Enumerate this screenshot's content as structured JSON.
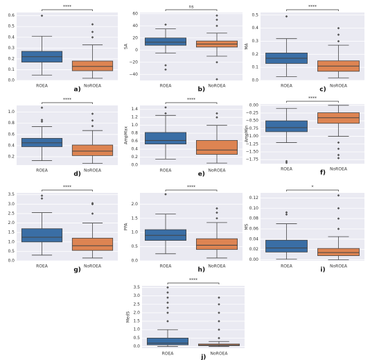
{
  "chart_data": [
    {
      "type": "box",
      "label": "a)",
      "categories": [
        "ROEA",
        "NoROEA"
      ],
      "significance": "****",
      "ylim": [
        0,
        0.63
      ],
      "yticks": [
        {
          "value": 0,
          "label": "0.0"
        },
        0.1,
        0.2,
        0.3,
        0.4,
        0.5,
        0.6
      ],
      "boxes": [
        {
          "color": "#3a6ea5",
          "whislo": 0.05,
          "q1": 0.17,
          "med": 0.22,
          "q3": 0.27,
          "whishi": 0.41,
          "outliers": [
            0.6
          ]
        },
        {
          "color": "#dd8452",
          "whislo": 0.02,
          "q1": 0.09,
          "med": 0.13,
          "q3": 0.18,
          "whishi": 0.33,
          "outliers": [
            0.4,
            0.45,
            0.52
          ]
        }
      ]
    },
    {
      "type": "box",
      "label": "b)",
      "ylabel": "SA",
      "categories": [
        "ROEA",
        "NoROEA"
      ],
      "significance": "ns",
      "ylim": [
        -50,
        62
      ],
      "yticks": [
        {
          "value": -40,
          "label": "−40"
        },
        {
          "value": -20,
          "label": "−20"
        },
        0,
        20,
        40,
        60
      ],
      "boxes": [
        {
          "color": "#3a6ea5",
          "whislo": -5,
          "q1": 8,
          "med": 13,
          "q3": 20,
          "whishi": 35,
          "outliers": [
            42,
            -25,
            -32
          ]
        },
        {
          "color": "#dd8452",
          "whislo": -10,
          "q1": 5,
          "med": 10,
          "q3": 15,
          "whishi": 28,
          "outliers": [
            40,
            50,
            57,
            -20,
            -48
          ]
        }
      ]
    },
    {
      "type": "box",
      "label": "c)",
      "ylabel": "MA",
      "categories": [
        "ROEA",
        "NoROEA"
      ],
      "significance": "****",
      "ylim": [
        0,
        0.52
      ],
      "yticks": [
        {
          "value": 0,
          "label": "0.0"
        },
        0.1,
        0.2,
        0.3,
        0.4,
        0.5
      ],
      "boxes": [
        {
          "color": "#3a6ea5",
          "whislo": 0.03,
          "q1": 0.13,
          "med": 0.17,
          "q3": 0.21,
          "whishi": 0.32,
          "outliers": [
            0.49
          ]
        },
        {
          "color": "#dd8452",
          "whislo": 0.02,
          "q1": 0.07,
          "med": 0.11,
          "q3": 0.15,
          "whishi": 0.27,
          "outliers": [
            0.3,
            0.35,
            0.4
          ]
        }
      ]
    },
    {
      "type": "box",
      "label": "d)",
      "categories": [
        "ROEA",
        "NoROEA"
      ],
      "significance": "****",
      "ylim": [
        0.05,
        1.12
      ],
      "yticks": [
        0.2,
        0.4,
        0.6,
        0.8,
        {
          "value": 1,
          "label": "1.0"
        }
      ],
      "boxes": [
        {
          "color": "#3a6ea5",
          "whislo": 0.13,
          "q1": 0.38,
          "med": 0.45,
          "q3": 0.53,
          "whishi": 0.74,
          "outliers": [
            0.83,
            0.86,
            1.08
          ]
        },
        {
          "color": "#dd8452",
          "whislo": 0.08,
          "q1": 0.22,
          "med": 0.3,
          "q3": 0.41,
          "whishi": 0.67,
          "outliers": [
            0.75,
            0.85,
            0.97
          ]
        }
      ]
    },
    {
      "type": "box",
      "label": "e)",
      "ylabel": "AmpMax",
      "categories": [
        "ROEA",
        "NoROEA"
      ],
      "significance": "****",
      "ylim": [
        0,
        1.5
      ],
      "yticks": [
        {
          "value": 0,
          "label": "0.0"
        },
        0.2,
        0.4,
        0.6,
        0.8,
        {
          "value": 1,
          "label": "1.0"
        },
        1.2,
        1.4
      ],
      "boxes": [
        {
          "color": "#3a6ea5",
          "whislo": 0.15,
          "q1": 0.53,
          "med": 0.62,
          "q3": 0.82,
          "whishi": 1.25,
          "outliers": [
            1.3,
            1.45
          ]
        },
        {
          "color": "#dd8452",
          "whislo": 0.05,
          "q1": 0.27,
          "med": 0.38,
          "q3": 0.62,
          "whishi": 1.0,
          "outliers": [
            1.2,
            1.3
          ]
        }
      ]
    },
    {
      "type": "box",
      "label": "f)",
      "ylabel": "AmpMin",
      "categories": [
        "ROEA",
        "NoROEA"
      ],
      "significance": "****",
      "ylim": [
        -1.88,
        0.04
      ],
      "yticks": [
        {
          "value": 0,
          "label": "0.00"
        },
        {
          "value": -0.25,
          "label": "−0.25"
        },
        {
          "value": -0.5,
          "label": "−0.50"
        },
        {
          "value": -0.75,
          "label": "−0.75"
        },
        {
          "value": -1,
          "label": "−1.00"
        },
        {
          "value": -1.25,
          "label": "−1.25"
        },
        {
          "value": -1.5,
          "label": "−1.50"
        },
        {
          "value": -1.75,
          "label": "−1.75"
        }
      ],
      "boxes": [
        {
          "color": "#3a6ea5",
          "whislo": -1.2,
          "q1": -0.85,
          "med": -0.72,
          "q3": -0.5,
          "whishi": -0.1,
          "outliers": [
            -1.8,
            -1.85
          ]
        },
        {
          "color": "#dd8452",
          "whislo": -1.0,
          "q1": -0.58,
          "med": -0.4,
          "q3": -0.24,
          "whishi": 0,
          "outliers": [
            -1.2,
            -1.4,
            -1.6,
            -1.7
          ]
        }
      ]
    },
    {
      "type": "box",
      "label": "g)",
      "categories": [
        "ROEA",
        "NoROEA"
      ],
      "significance": "****",
      "ylim": [
        0,
        3.6
      ],
      "yticks": [
        {
          "value": 0,
          "label": "0.0"
        },
        0.5,
        {
          "value": 1,
          "label": "1.0"
        },
        1.5,
        {
          "value": 2,
          "label": "2.0"
        },
        2.5,
        {
          "value": 3,
          "label": "3.0"
        },
        3.5
      ],
      "boxes": [
        {
          "color": "#3a6ea5",
          "whislo": 0.3,
          "q1": 1.0,
          "med": 1.25,
          "q3": 1.7,
          "whishi": 2.55,
          "outliers": [
            3.3,
            3.45
          ]
        },
        {
          "color": "#dd8452",
          "whislo": 0.15,
          "q1": 0.55,
          "med": 0.8,
          "q3": 1.2,
          "whishi": 2.0,
          "outliers": [
            2.5,
            3.0,
            3.05
          ]
        }
      ]
    },
    {
      "type": "box",
      "label": "h)",
      "ylabel": "PPA",
      "categories": [
        "ROEA",
        "NoROEA"
      ],
      "significance": "****",
      "ylim": [
        0,
        2.4
      ],
      "yticks": [
        {
          "value": 0,
          "label": "0.0"
        },
        0.5,
        {
          "value": 1,
          "label": "1.0"
        },
        1.5,
        {
          "value": 2,
          "label": "2.0"
        }
      ],
      "boxes": [
        {
          "color": "#3a6ea5",
          "whislo": 0.25,
          "q1": 0.72,
          "med": 0.9,
          "q3": 1.1,
          "whishi": 1.65,
          "outliers": [
            2.35
          ]
        },
        {
          "color": "#dd8452",
          "whislo": 0.1,
          "q1": 0.4,
          "med": 0.55,
          "q3": 0.78,
          "whishi": 1.35,
          "outliers": [
            1.5,
            1.7,
            1.85
          ]
        }
      ]
    },
    {
      "type": "box",
      "label": "i)",
      "ylabel": "MS",
      "categories": [
        "ROEA",
        "NoROEA"
      ],
      "significance": "*",
      "ylim": [
        -0.002,
        0.13
      ],
      "yticks": [
        {
          "value": 0,
          "label": "0.00"
        },
        0.02,
        0.04,
        0.06,
        0.08,
        {
          "value": 0.1,
          "label": "0.10"
        },
        0.12
      ],
      "boxes": [
        {
          "color": "#3a6ea5",
          "whislo": 0.001,
          "q1": 0.015,
          "med": 0.023,
          "q3": 0.038,
          "whishi": 0.07,
          "outliers": [
            0.088,
            0.092
          ]
        },
        {
          "color": "#dd8452",
          "whislo": 0,
          "q1": 0.008,
          "med": 0.014,
          "q3": 0.022,
          "whishi": 0.045,
          "outliers": [
            0.06,
            0.08,
            0.1,
            0.125
          ]
        }
      ]
    },
    {
      "type": "box",
      "label": "j)",
      "ylabel": "MedS",
      "categories": [
        "ROEA",
        "NoROEA"
      ],
      "significance": "****",
      "ylim": [
        -0.1,
        3.6
      ],
      "yticks": [
        {
          "value": 0,
          "label": "0.0"
        },
        0.5,
        {
          "value": 1,
          "label": "1.0"
        },
        1.5,
        {
          "value": 2,
          "label": "2.0"
        },
        2.5,
        {
          "value": 3,
          "label": "3.0"
        },
        3.5
      ],
      "boxes": [
        {
          "color": "#3a6ea5",
          "whislo": 0,
          "q1": 0.1,
          "med": 0.2,
          "q3": 0.5,
          "whishi": 1.0,
          "outliers": [
            1.5,
            2.0,
            2.3,
            2.6,
            2.9,
            3.2,
            3.5
          ]
        },
        {
          "color": "#dd8452",
          "whislo": 0,
          "q1": 0.05,
          "med": 0.09,
          "q3": 0.15,
          "whishi": 0.3,
          "outliers": [
            0.5,
            1.0,
            1.5,
            2.0,
            2.5,
            2.9
          ]
        }
      ]
    }
  ]
}
